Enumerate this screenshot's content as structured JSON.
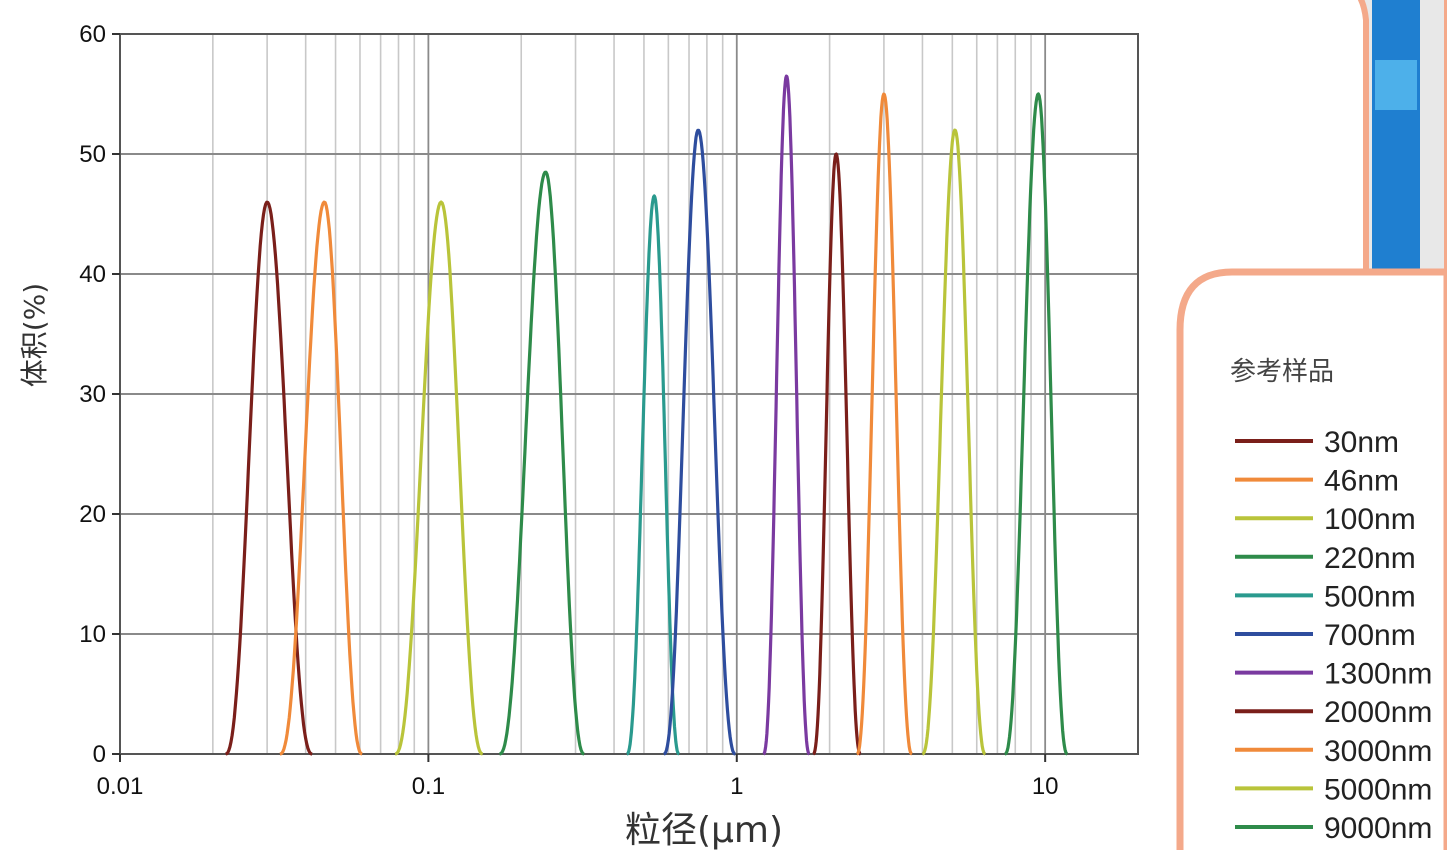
{
  "chart_data": {
    "type": "line",
    "x_scale": "log",
    "xlim": [
      0.01,
      20
    ],
    "ylim": [
      0,
      60
    ],
    "xlabel": "粒径(μm)",
    "ylabel": "体积(%)",
    "x_ticks": [
      {
        "value": 0.01,
        "label": "0.01"
      },
      {
        "value": 0.1,
        "label": "0.1"
      },
      {
        "value": 1,
        "label": "1"
      },
      {
        "value": 10,
        "label": "10"
      }
    ],
    "y_ticks": [
      {
        "value": 0,
        "label": "0"
      },
      {
        "value": 10,
        "label": "10"
      },
      {
        "value": 20,
        "label": "20"
      },
      {
        "value": 30,
        "label": "30"
      },
      {
        "value": 40,
        "label": "40"
      },
      {
        "value": 50,
        "label": "50"
      },
      {
        "value": 60,
        "label": "60"
      }
    ],
    "grid": true,
    "legend_title": "参考样品",
    "legend_position": "right",
    "series": [
      {
        "name": "30nm",
        "color": "#7a1f1a",
        "peak_x": 0.03,
        "peak_y": 46,
        "x_min": 0.022,
        "x_max": 0.042
      },
      {
        "name": "46nm",
        "color": "#f08a3a",
        "peak_x": 0.046,
        "peak_y": 46,
        "x_min": 0.033,
        "x_max": 0.061
      },
      {
        "name": "100nm",
        "color": "#b9c43a",
        "peak_x": 0.11,
        "peak_y": 46,
        "x_min": 0.078,
        "x_max": 0.15
      },
      {
        "name": "220nm",
        "color": "#2e8b4a",
        "peak_x": 0.24,
        "peak_y": 48.5,
        "x_min": 0.17,
        "x_max": 0.32
      },
      {
        "name": "500nm",
        "color": "#2a9a8e",
        "peak_x": 0.54,
        "peak_y": 46.5,
        "x_min": 0.44,
        "x_max": 0.65
      },
      {
        "name": "700nm",
        "color": "#2e4d9e",
        "peak_x": 0.75,
        "peak_y": 52,
        "x_min": 0.58,
        "x_max": 0.99
      },
      {
        "name": "1300nm",
        "color": "#7a3aa0",
        "peak_x": 1.45,
        "peak_y": 56.5,
        "x_min": 1.22,
        "x_max": 1.72
      },
      {
        "name": "2000nm",
        "color": "#7a1f1a",
        "peak_x": 2.1,
        "peak_y": 50,
        "x_min": 1.77,
        "x_max": 2.52
      },
      {
        "name": "3000nm",
        "color": "#f08a3a",
        "peak_x": 3.0,
        "peak_y": 55,
        "x_min": 2.45,
        "x_max": 3.7
      },
      {
        "name": "5000nm",
        "color": "#b9c43a",
        "peak_x": 5.1,
        "peak_y": 52,
        "x_min": 4.0,
        "x_max": 6.4
      },
      {
        "name": "9000nm",
        "color": "#2e8b4a",
        "peak_x": 9.5,
        "peak_y": 55,
        "x_min": 7.4,
        "x_max": 11.8
      }
    ]
  }
}
